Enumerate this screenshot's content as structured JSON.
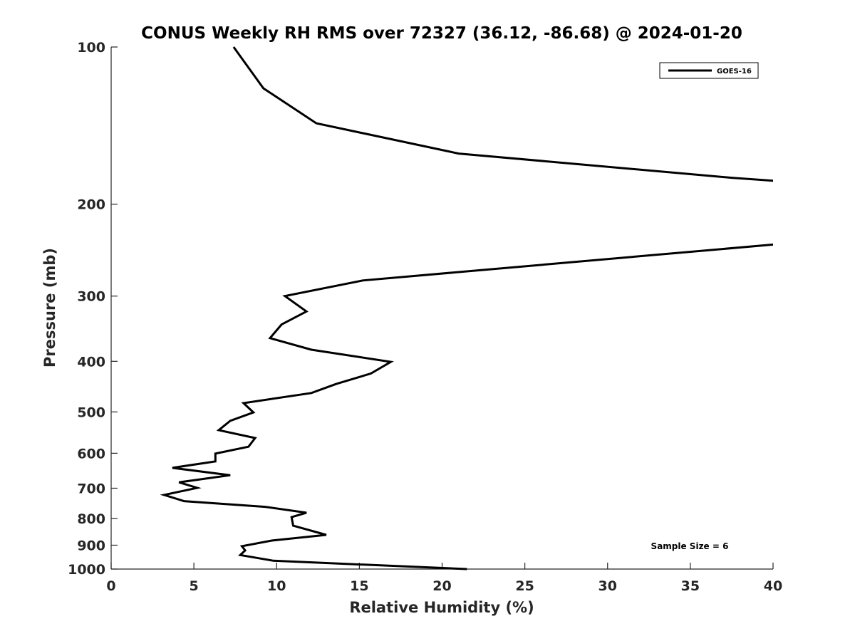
{
  "chart_data": {
    "type": "line",
    "title": "CONUS Weekly RH RMS over 72327 (36.12, -86.68) @ 2024-01-20",
    "xlabel": "Relative Humidity (%)",
    "ylabel": "Pressure (mb)",
    "xlim": [
      0,
      40
    ],
    "ylim": [
      100,
      1000
    ],
    "yscale": "log",
    "yreversed": true,
    "grid": false,
    "legend_placement": "top-right",
    "xticks": [
      0,
      5,
      10,
      15,
      20,
      25,
      30,
      35,
      40
    ],
    "yticks": [
      100,
      200,
      300,
      400,
      500,
      600,
      700,
      800,
      900,
      1000
    ],
    "annotation": "Sample Size = 6",
    "series": [
      {
        "name": "GOES-16",
        "color": "#000000",
        "points": [
          [
            7.4,
            100
          ],
          [
            9.2,
            120
          ],
          [
            12.4,
            140
          ],
          [
            21.0,
            160
          ],
          [
            37.5,
            178
          ],
          [
            60,
            200
          ],
          [
            60,
            225
          ],
          [
            40,
            239
          ],
          [
            15.2,
            280
          ],
          [
            10.5,
            300
          ],
          [
            11.8,
            321
          ],
          [
            10.3,
            340
          ],
          [
            9.6,
            361
          ],
          [
            12.1,
            380
          ],
          [
            16.9,
            401
          ],
          [
            15.7,
            422
          ],
          [
            13.6,
            442
          ],
          [
            12.1,
            460
          ],
          [
            8.0,
            481
          ],
          [
            8.6,
            501
          ],
          [
            7.2,
            520
          ],
          [
            6.5,
            542
          ],
          [
            8.7,
            561
          ],
          [
            8.3,
            583
          ],
          [
            6.3,
            601
          ],
          [
            6.3,
            622
          ],
          [
            3.7,
            640
          ],
          [
            7.2,
            661
          ],
          [
            4.1,
            682
          ],
          [
            5.2,
            699
          ],
          [
            3.2,
            721
          ],
          [
            4.4,
            741
          ],
          [
            9.3,
            760
          ],
          [
            11.8,
            780
          ],
          [
            10.9,
            795
          ],
          [
            11.0,
            826
          ],
          [
            13.0,
            860
          ],
          [
            9.7,
            882
          ],
          [
            7.9,
            904
          ],
          [
            8.1,
            921
          ],
          [
            7.8,
            940
          ],
          [
            9.8,
            964
          ],
          [
            21.5,
            1000
          ]
        ]
      }
    ]
  }
}
